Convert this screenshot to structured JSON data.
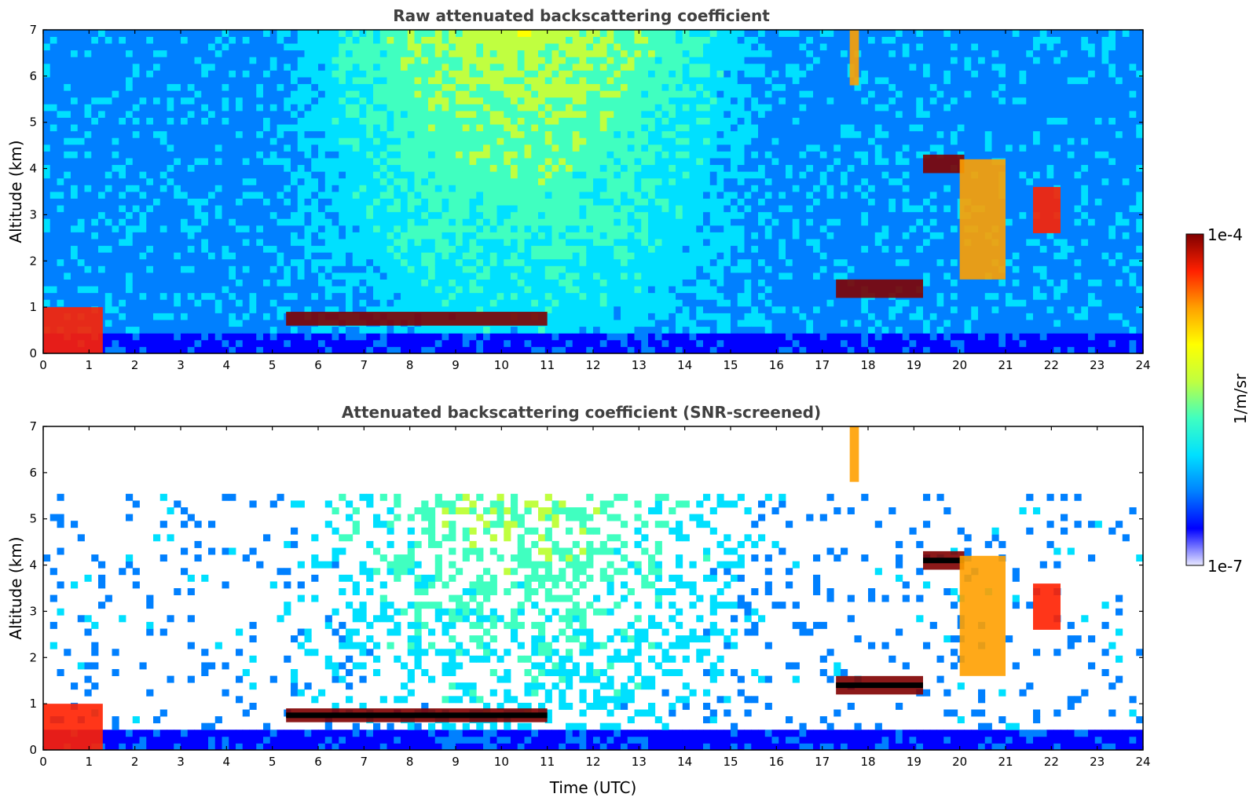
{
  "chart_data": [
    {
      "type": "heatmap",
      "title": "Raw attenuated backscattering coefficient",
      "xlabel": "",
      "ylabel": "Altitude (km)",
      "xlim": [
        0,
        24
      ],
      "ylim": [
        0,
        7
      ],
      "x_ticks": [
        "0",
        "1",
        "2",
        "3",
        "4",
        "5",
        "6",
        "7",
        "8",
        "9",
        "10",
        "11",
        "12",
        "13",
        "14",
        "15",
        "16",
        "17",
        "18",
        "19",
        "20",
        "21",
        "22",
        "23",
        "24"
      ],
      "y_ticks": [
        "0",
        "1",
        "2",
        "3",
        "4",
        "5",
        "6",
        "7"
      ],
      "color_scale": "log",
      "features": [
        {
          "kind": "near-surface layer",
          "t_start": 0.0,
          "t_end": 1.3,
          "alt_low": 0.0,
          "alt_high": 1.0,
          "level": 0.9
        },
        {
          "kind": "boundary layer top",
          "t_start": 5.3,
          "t_end": 11.0,
          "alt_low": 0.6,
          "alt_high": 0.9,
          "level": 1.0
        },
        {
          "kind": "cloud",
          "t_start": 17.3,
          "t_end": 19.2,
          "alt_low": 1.2,
          "alt_high": 1.6,
          "level": 1.0
        },
        {
          "kind": "cloud",
          "t_start": 19.2,
          "t_end": 20.1,
          "alt_low": 3.9,
          "alt_high": 4.3,
          "level": 1.0
        },
        {
          "kind": "falling streak",
          "t_start": 20.0,
          "t_end": 21.0,
          "alt_low": 1.6,
          "alt_high": 4.2,
          "level": 0.75
        },
        {
          "kind": "cloud",
          "t_start": 21.6,
          "t_end": 22.2,
          "alt_low": 2.6,
          "alt_high": 3.6,
          "level": 0.85
        },
        {
          "kind": "thin cirrus",
          "t_start": 17.6,
          "t_end": 17.8,
          "alt_low": 5.8,
          "alt_high": 7.0,
          "level": 0.8
        }
      ]
    },
    {
      "type": "heatmap",
      "title": "Attenuated backscattering coefficient (SNR-screened)",
      "xlabel": "Time (UTC)",
      "ylabel": "Altitude (km)",
      "xlim": [
        0,
        24
      ],
      "ylim": [
        0,
        7
      ],
      "x_ticks": [
        "0",
        "1",
        "2",
        "3",
        "4",
        "5",
        "6",
        "7",
        "8",
        "9",
        "10",
        "11",
        "12",
        "13",
        "14",
        "15",
        "16",
        "17",
        "18",
        "19",
        "20",
        "21",
        "22",
        "23",
        "24"
      ],
      "y_ticks": [
        "0",
        "1",
        "2",
        "3",
        "4",
        "5",
        "6",
        "7"
      ],
      "color_scale": "log",
      "masked_below_snr": true
    }
  ],
  "colorbar": {
    "min_label": "1e-7",
    "max_label": "1e-4",
    "units_label": "1/m/sr",
    "colormap": "jet",
    "colors": [
      "#e8e8ff",
      "#0000ff",
      "#0080ff",
      "#00e0ff",
      "#40ffc0",
      "#c0ff40",
      "#ffff00",
      "#ffa000",
      "#ff2000",
      "#800000"
    ]
  }
}
